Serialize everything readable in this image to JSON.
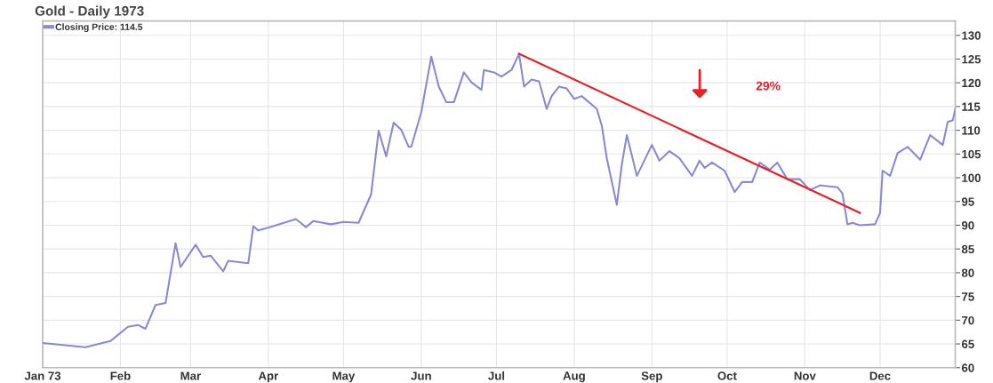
{
  "chart_data": {
    "type": "line",
    "title": "Gold - Daily 1973",
    "x": [
      "1973-01-01",
      "1973-01-18",
      "1973-01-28",
      "1973-02-04",
      "1973-02-08",
      "1973-02-11",
      "1973-02-15",
      "1973-02-19",
      "1973-02-23",
      "1973-02-25",
      "1973-03-03",
      "1973-03-06",
      "1973-03-09",
      "1973-03-14",
      "1973-03-16",
      "1973-03-24",
      "1973-03-26",
      "1973-03-28",
      "1973-04-03",
      "1973-04-12",
      "1973-04-16",
      "1973-04-19",
      "1973-04-26",
      "1973-05-01",
      "1973-05-07",
      "1973-05-12",
      "1973-05-15",
      "1973-05-18",
      "1973-05-21",
      "1973-05-24",
      "1973-05-27",
      "1973-05-28",
      "1973-06-01",
      "1973-06-05",
      "1973-06-08",
      "1973-06-11",
      "1973-06-14",
      "1973-06-18",
      "1973-06-21",
      "1973-06-25",
      "1973-06-26",
      "1973-06-30",
      "1973-07-03",
      "1973-07-07",
      "1973-07-10",
      "1973-07-12",
      "1973-07-15",
      "1973-07-18",
      "1973-07-21",
      "1973-07-23",
      "1973-07-26",
      "1973-07-29",
      "1973-08-01",
      "1973-08-04",
      "1973-08-10",
      "1973-08-12",
      "1973-08-14",
      "1973-08-18",
      "1973-08-20",
      "1973-08-22",
      "1973-08-26",
      "1973-09-01",
      "1973-09-04",
      "1973-09-08",
      "1973-09-12",
      "1973-09-17",
      "1973-09-20",
      "1973-09-22",
      "1973-09-25",
      "1973-09-30",
      "1973-10-04",
      "1973-10-07",
      "1973-10-11",
      "1973-10-14",
      "1973-10-18",
      "1973-10-21",
      "1973-10-25",
      "1973-10-30",
      "1973-11-03",
      "1973-11-07",
      "1973-11-14",
      "1973-11-16",
      "1973-11-18",
      "1973-11-20",
      "1973-11-23",
      "1973-11-29",
      "1973-12-01",
      "1973-12-02",
      "1973-12-05",
      "1973-12-08",
      "1973-12-12",
      "1973-12-17",
      "1973-12-21",
      "1973-12-26",
      "1973-12-28",
      "1973-12-30",
      "1973-12-31"
    ],
    "series": [
      {
        "name": "Closing Price: 114.5",
        "color": "#8a8ad0",
        "values": [
          65.2,
          64.3,
          65.6,
          68.6,
          69.0,
          68.2,
          73.2,
          73.6,
          86.2,
          81.2,
          85.9,
          83.3,
          83.6,
          80.3,
          82.5,
          82.0,
          89.8,
          88.9,
          89.8,
          91.3,
          89.6,
          90.9,
          90.2,
          90.7,
          90.5,
          96.5,
          109.9,
          104.5,
          111.6,
          110.1,
          106.5,
          106.5,
          113.8,
          125.5,
          119.2,
          115.9,
          115.9,
          122.2,
          120.1,
          118.5,
          122.7,
          122.2,
          121.3,
          122.7,
          126.1,
          119.2,
          120.7,
          120.3,
          114.5,
          117.2,
          119.2,
          118.8,
          116.6,
          117.2,
          114.5,
          111.0,
          104.1,
          94.3,
          102.8,
          109.0,
          100.4,
          106.9,
          103.6,
          105.6,
          104.1,
          100.4,
          103.6,
          102.1,
          103.2,
          101.5,
          97.0,
          99.1,
          99.1,
          103.2,
          101.7,
          103.2,
          99.7,
          99.7,
          97.4,
          98.4,
          98.0,
          96.7,
          90.2,
          90.5,
          90.0,
          90.2,
          92.6,
          101.5,
          100.4,
          105.2,
          106.5,
          103.8,
          109.0,
          106.9,
          111.8,
          112.1,
          114.5
        ]
      },
      {
        "type": "line",
        "color": "#e8202a",
        "x": [
          "1973-07-10",
          "1973-11-23"
        ],
        "values": [
          126.1,
          92.6
        ]
      }
    ],
    "annotations": [
      "29%"
    ],
    "xlim": [
      "1973-01-01",
      "1973-12-31"
    ],
    "xticks": [
      {
        "value": "1973-01-01",
        "label": "Jan 73"
      },
      {
        "value": "1973-02-01",
        "label": "Feb"
      },
      {
        "value": "1973-03-01",
        "label": "Mar"
      },
      {
        "value": "1973-04-01",
        "label": "Apr"
      },
      {
        "value": "1973-05-01",
        "label": "May"
      },
      {
        "value": "1973-06-01",
        "label": "Jun"
      },
      {
        "value": "1973-07-01",
        "label": "Jul"
      },
      {
        "value": "1973-08-01",
        "label": "Aug"
      },
      {
        "value": "1973-09-01",
        "label": "Sep"
      },
      {
        "value": "1973-10-01",
        "label": "Oct"
      },
      {
        "value": "1973-11-01",
        "label": "Nov"
      },
      {
        "value": "1973-12-01",
        "label": "Dec"
      }
    ],
    "ylim": [
      60,
      133
    ],
    "yticks": [
      60,
      65,
      70,
      75,
      80,
      85,
      90,
      95,
      100,
      105,
      110,
      115,
      120,
      125,
      130
    ],
    "grid": true,
    "legend": "top left",
    "marker": "none",
    "line_style": "solid"
  }
}
